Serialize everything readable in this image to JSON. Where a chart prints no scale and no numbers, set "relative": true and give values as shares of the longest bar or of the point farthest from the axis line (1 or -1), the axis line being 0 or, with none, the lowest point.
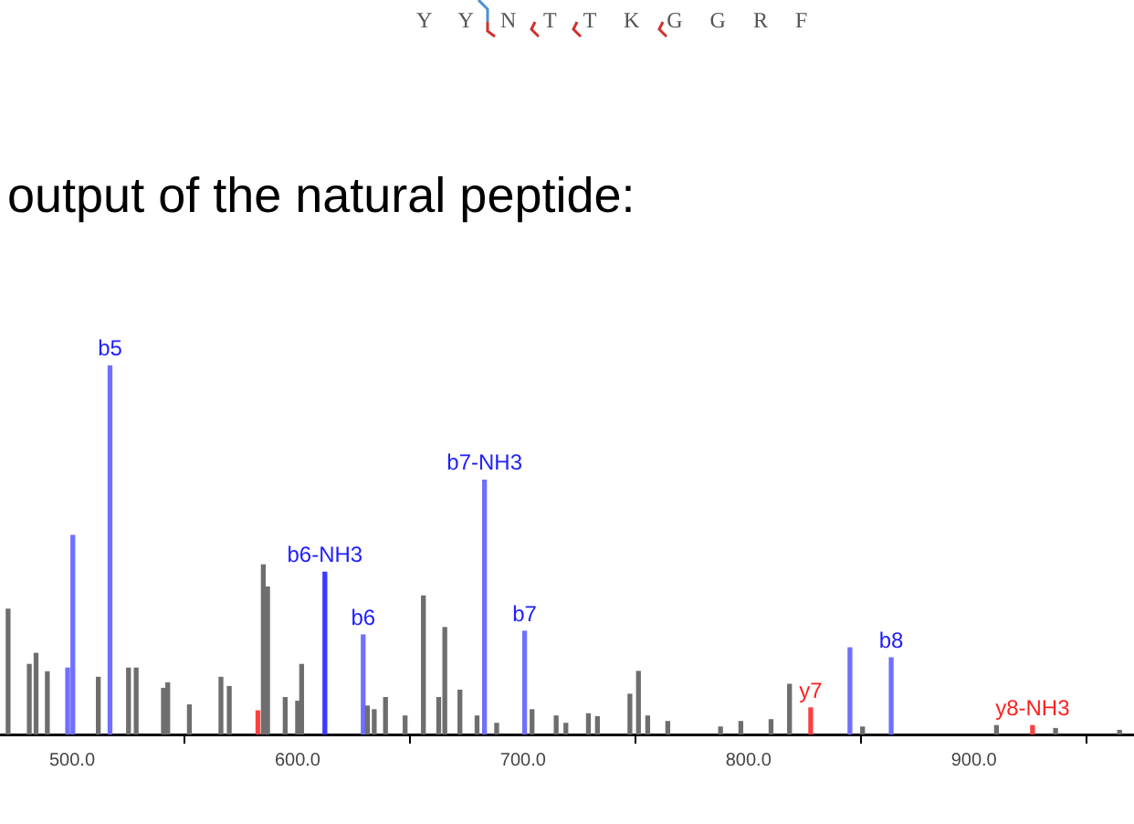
{
  "chart_data": {
    "type": "bar",
    "title": "output of the natural peptide:",
    "subtitle": "Y Y N T T K G G R F",
    "relative": true,
    "grid": false,
    "legend": false,
    "xlim": [
      468,
      971
    ],
    "xticks": [
      {
        "value": 500,
        "label": "500.0"
      },
      {
        "value": 600,
        "label": "600.0"
      },
      {
        "value": 700,
        "label": "700.0"
      },
      {
        "value": 800,
        "label": "800.0"
      },
      {
        "value": 900,
        "label": "900.0"
      }
    ],
    "x": [
      471.6,
      481,
      484,
      489,
      498,
      500.3,
      511.6,
      516.8,
      525,
      528.4,
      540.5,
      542.4,
      552,
      566,
      569.7,
      582.4,
      584.8,
      586.7,
      594.5,
      600,
      601.8,
      612.1,
      629.1,
      631,
      634,
      639,
      647.7,
      655.8,
      662.6,
      665.3,
      672,
      679.6,
      682.9,
      688.3,
      700.7,
      704,
      714.7,
      719,
      729,
      733,
      747.4,
      751.2,
      755.3,
      764.2,
      787.6,
      796.6,
      810,
      818.2,
      827.6,
      845,
      850.6,
      863.3,
      910,
      926,
      936.2,
      964.6
    ],
    "values": [
      0.34,
      0.19,
      0.22,
      0.17,
      0.18,
      0.54,
      0.155,
      1,
      0.18,
      0.18,
      0.125,
      0.14,
      0.08,
      0.155,
      0.13,
      0.064,
      0.46,
      0.4,
      0.1,
      0.09,
      0.19,
      0.44,
      0.27,
      0.077,
      0.067,
      0.1,
      0.05,
      0.376,
      0.1,
      0.29,
      0.12,
      0.05,
      0.69,
      0.03,
      0.28,
      0.067,
      0.05,
      0.03,
      0.056,
      0.048,
      0.109,
      0.171,
      0.05,
      0.035,
      0.02,
      0.035,
      0.04,
      0.136,
      0.072,
      0.235,
      0.02,
      0.208,
      0.024,
      0.024,
      0.016,
      0.011
    ],
    "colors": [
      "#6e6e6e",
      "#6e6e6e",
      "#6e6e6e",
      "#6e6e6e",
      "#7070ff",
      "#7070ff",
      "#6e6e6e",
      "#7070ff",
      "#6e6e6e",
      "#6e6e6e",
      "#6e6e6e",
      "#6e6e6e",
      "#6e6e6e",
      "#6e6e6e",
      "#6e6e6e",
      "#ff4040",
      "#6e6e6e",
      "#6e6e6e",
      "#6e6e6e",
      "#6e6e6e",
      "#6e6e6e",
      "#3a3aff",
      "#7070ff",
      "#6e6e6e",
      "#6e6e6e",
      "#6e6e6e",
      "#6e6e6e",
      "#6e6e6e",
      "#6e6e6e",
      "#6e6e6e",
      "#6e6e6e",
      "#6e6e6e",
      "#7070ff",
      "#6e6e6e",
      "#7070ff",
      "#6e6e6e",
      "#6e6e6e",
      "#6e6e6e",
      "#6e6e6e",
      "#6e6e6e",
      "#6e6e6e",
      "#6e6e6e",
      "#6e6e6e",
      "#6e6e6e",
      "#6e6e6e",
      "#6e6e6e",
      "#6e6e6e",
      "#6e6e6e",
      "#ff4040",
      "#7070ff",
      "#6e6e6e",
      "#7070ff",
      "#6e6e6e",
      "#ff4040",
      "#6e6e6e",
      "#6e6e6e"
    ],
    "annotations": [
      {
        "text": "b5",
        "x": 516.8,
        "y": 1
      },
      {
        "text": "b6-NH3",
        "x": 612.1,
        "y": 0.44
      },
      {
        "text": "b6",
        "x": 629.1,
        "y": 0.27
      },
      {
        "text": "b7-NH3",
        "x": 682.9,
        "y": 0.69
      },
      {
        "text": "b7",
        "x": 700.7,
        "y": 0.28
      },
      {
        "text": "y7",
        "x": 827.6,
        "y": 0.072
      },
      {
        "text": "b8",
        "x": 863.3,
        "y": 0.208
      },
      {
        "text": "y8-NH3",
        "x": 926,
        "y": 0.024
      }
    ]
  }
}
